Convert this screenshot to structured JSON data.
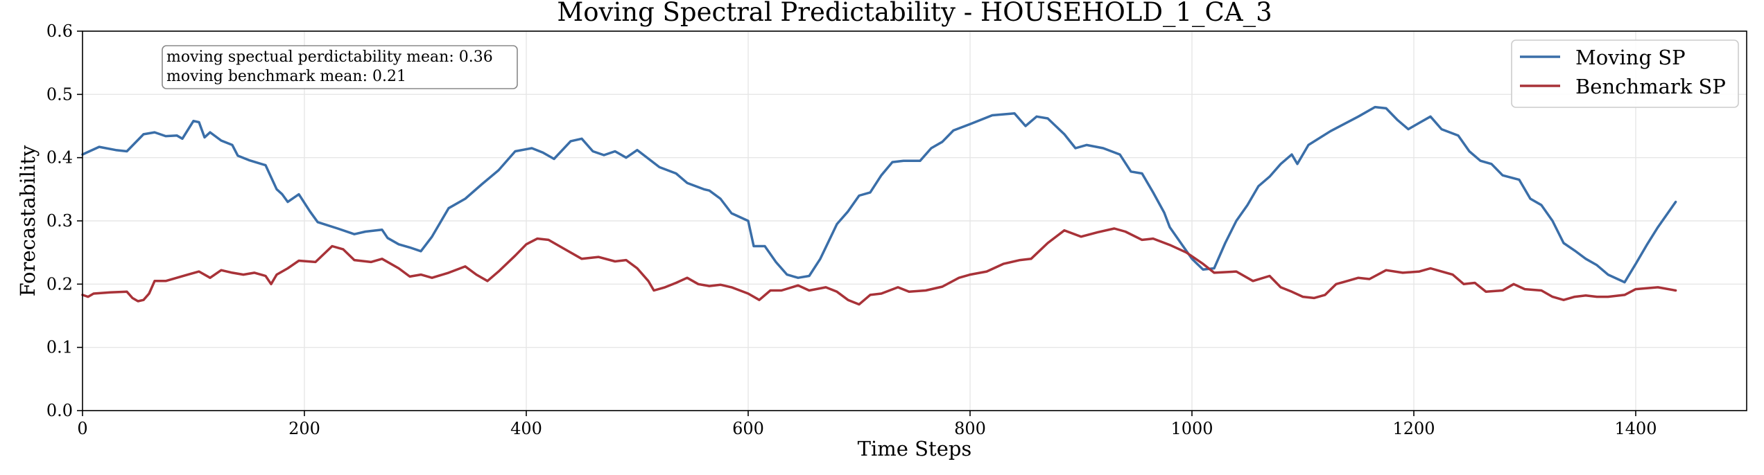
{
  "chart_data": {
    "type": "line",
    "title": "Moving Spectral Predictability - HOUSEHOLD_1_CA_3",
    "xlabel": "Time Steps",
    "ylabel": "Forecastability",
    "xlim": [
      0,
      1500
    ],
    "ylim": [
      0,
      0.6
    ],
    "xticks": [
      0,
      200,
      400,
      600,
      800,
      1000,
      1200,
      1400
    ],
    "yticks": [
      0.0,
      0.1,
      0.2,
      0.3,
      0.4,
      0.5,
      0.6
    ],
    "xtick_labels": [
      "0",
      "200",
      "400",
      "600",
      "800",
      "1000",
      "1200",
      "1400"
    ],
    "ytick_labels": [
      "0.0",
      "0.1",
      "0.2",
      "0.3",
      "0.4",
      "0.5",
      "0.6"
    ],
    "grid": true,
    "legend_position": "top-right",
    "annotation": {
      "lines": [
        "moving spectual perdictability mean: 0.36",
        "moving benchmark mean: 0.21"
      ]
    },
    "series": [
      {
        "name": "Moving SP",
        "color": "#3a6ea8",
        "points": [
          [
            0,
            0.405
          ],
          [
            15,
            0.417
          ],
          [
            30,
            0.412
          ],
          [
            40,
            0.41
          ],
          [
            55,
            0.437
          ],
          [
            65,
            0.44
          ],
          [
            75,
            0.434
          ],
          [
            85,
            0.435
          ],
          [
            90,
            0.43
          ],
          [
            100,
            0.458
          ],
          [
            105,
            0.456
          ],
          [
            110,
            0.432
          ],
          [
            115,
            0.44
          ],
          [
            125,
            0.427
          ],
          [
            135,
            0.42
          ],
          [
            140,
            0.403
          ],
          [
            150,
            0.396
          ],
          [
            165,
            0.388
          ],
          [
            175,
            0.35
          ],
          [
            180,
            0.342
          ],
          [
            185,
            0.33
          ],
          [
            195,
            0.342
          ],
          [
            205,
            0.315
          ],
          [
            212,
            0.298
          ],
          [
            230,
            0.288
          ],
          [
            245,
            0.279
          ],
          [
            255,
            0.283
          ],
          [
            270,
            0.286
          ],
          [
            275,
            0.273
          ],
          [
            285,
            0.263
          ],
          [
            295,
            0.258
          ],
          [
            305,
            0.252
          ],
          [
            315,
            0.275
          ],
          [
            330,
            0.32
          ],
          [
            345,
            0.335
          ],
          [
            360,
            0.358
          ],
          [
            375,
            0.38
          ],
          [
            390,
            0.41
          ],
          [
            405,
            0.415
          ],
          [
            415,
            0.408
          ],
          [
            425,
            0.398
          ],
          [
            440,
            0.426
          ],
          [
            450,
            0.43
          ],
          [
            460,
            0.41
          ],
          [
            470,
            0.404
          ],
          [
            480,
            0.41
          ],
          [
            490,
            0.4
          ],
          [
            500,
            0.412
          ],
          [
            520,
            0.385
          ],
          [
            535,
            0.375
          ],
          [
            545,
            0.36
          ],
          [
            560,
            0.35
          ],
          [
            565,
            0.348
          ],
          [
            575,
            0.335
          ],
          [
            585,
            0.312
          ],
          [
            600,
            0.3
          ],
          [
            605,
            0.26
          ],
          [
            615,
            0.26
          ],
          [
            625,
            0.235
          ],
          [
            635,
            0.215
          ],
          [
            645,
            0.21
          ],
          [
            655,
            0.213
          ],
          [
            665,
            0.24
          ],
          [
            680,
            0.295
          ],
          [
            690,
            0.315
          ],
          [
            700,
            0.34
          ],
          [
            710,
            0.345
          ],
          [
            720,
            0.372
          ],
          [
            730,
            0.393
          ],
          [
            740,
            0.395
          ],
          [
            755,
            0.395
          ],
          [
            765,
            0.415
          ],
          [
            775,
            0.425
          ],
          [
            785,
            0.443
          ],
          [
            800,
            0.453
          ],
          [
            820,
            0.467
          ],
          [
            840,
            0.47
          ],
          [
            845,
            0.46
          ],
          [
            850,
            0.45
          ],
          [
            860,
            0.465
          ],
          [
            870,
            0.462
          ],
          [
            885,
            0.437
          ],
          [
            895,
            0.415
          ],
          [
            905,
            0.42
          ],
          [
            920,
            0.415
          ],
          [
            935,
            0.405
          ],
          [
            945,
            0.378
          ],
          [
            955,
            0.375
          ],
          [
            965,
            0.345
          ],
          [
            975,
            0.313
          ],
          [
            980,
            0.29
          ],
          [
            990,
            0.265
          ],
          [
            1000,
            0.24
          ],
          [
            1010,
            0.223
          ],
          [
            1020,
            0.225
          ],
          [
            1030,
            0.265
          ],
          [
            1040,
            0.3
          ],
          [
            1050,
            0.325
          ],
          [
            1060,
            0.355
          ],
          [
            1070,
            0.37
          ],
          [
            1080,
            0.39
          ],
          [
            1090,
            0.405
          ],
          [
            1095,
            0.39
          ],
          [
            1105,
            0.42
          ],
          [
            1125,
            0.442
          ],
          [
            1150,
            0.465
          ],
          [
            1165,
            0.48
          ],
          [
            1175,
            0.478
          ],
          [
            1185,
            0.46
          ],
          [
            1195,
            0.445
          ],
          [
            1205,
            0.455
          ],
          [
            1215,
            0.465
          ],
          [
            1225,
            0.445
          ],
          [
            1240,
            0.435
          ],
          [
            1250,
            0.41
          ],
          [
            1260,
            0.395
          ],
          [
            1270,
            0.39
          ],
          [
            1280,
            0.372
          ],
          [
            1295,
            0.365
          ],
          [
            1305,
            0.335
          ],
          [
            1315,
            0.325
          ],
          [
            1325,
            0.3
          ],
          [
            1335,
            0.265
          ],
          [
            1345,
            0.253
          ],
          [
            1355,
            0.24
          ],
          [
            1365,
            0.23
          ],
          [
            1375,
            0.215
          ],
          [
            1390,
            0.203
          ],
          [
            1400,
            0.232
          ],
          [
            1410,
            0.262
          ],
          [
            1420,
            0.29
          ],
          [
            1436,
            0.33
          ]
        ]
      },
      {
        "name": "Benchmark SP",
        "color": "#a83238",
        "points": [
          [
            0,
            0.183
          ],
          [
            5,
            0.18
          ],
          [
            10,
            0.185
          ],
          [
            25,
            0.187
          ],
          [
            40,
            0.188
          ],
          [
            45,
            0.178
          ],
          [
            50,
            0.173
          ],
          [
            55,
            0.175
          ],
          [
            60,
            0.185
          ],
          [
            65,
            0.205
          ],
          [
            75,
            0.205
          ],
          [
            85,
            0.21
          ],
          [
            95,
            0.215
          ],
          [
            105,
            0.22
          ],
          [
            115,
            0.21
          ],
          [
            125,
            0.222
          ],
          [
            135,
            0.218
          ],
          [
            145,
            0.215
          ],
          [
            155,
            0.218
          ],
          [
            165,
            0.213
          ],
          [
            170,
            0.2
          ],
          [
            175,
            0.215
          ],
          [
            185,
            0.225
          ],
          [
            195,
            0.237
          ],
          [
            210,
            0.235
          ],
          [
            225,
            0.26
          ],
          [
            235,
            0.255
          ],
          [
            245,
            0.238
          ],
          [
            260,
            0.235
          ],
          [
            270,
            0.24
          ],
          [
            285,
            0.225
          ],
          [
            295,
            0.212
          ],
          [
            305,
            0.215
          ],
          [
            315,
            0.21
          ],
          [
            330,
            0.218
          ],
          [
            345,
            0.228
          ],
          [
            355,
            0.215
          ],
          [
            365,
            0.205
          ],
          [
            375,
            0.22
          ],
          [
            390,
            0.245
          ],
          [
            400,
            0.263
          ],
          [
            410,
            0.272
          ],
          [
            420,
            0.27
          ],
          [
            435,
            0.255
          ],
          [
            450,
            0.24
          ],
          [
            465,
            0.243
          ],
          [
            480,
            0.236
          ],
          [
            490,
            0.238
          ],
          [
            500,
            0.225
          ],
          [
            510,
            0.205
          ],
          [
            515,
            0.19
          ],
          [
            525,
            0.195
          ],
          [
            535,
            0.202
          ],
          [
            545,
            0.21
          ],
          [
            555,
            0.2
          ],
          [
            565,
            0.197
          ],
          [
            575,
            0.199
          ],
          [
            585,
            0.195
          ],
          [
            600,
            0.185
          ],
          [
            610,
            0.175
          ],
          [
            620,
            0.19
          ],
          [
            630,
            0.19
          ],
          [
            645,
            0.198
          ],
          [
            655,
            0.19
          ],
          [
            670,
            0.195
          ],
          [
            680,
            0.188
          ],
          [
            690,
            0.175
          ],
          [
            700,
            0.168
          ],
          [
            710,
            0.183
          ],
          [
            720,
            0.185
          ],
          [
            735,
            0.195
          ],
          [
            745,
            0.188
          ],
          [
            760,
            0.19
          ],
          [
            775,
            0.196
          ],
          [
            790,
            0.21
          ],
          [
            800,
            0.215
          ],
          [
            815,
            0.22
          ],
          [
            830,
            0.232
          ],
          [
            845,
            0.238
          ],
          [
            855,
            0.24
          ],
          [
            870,
            0.265
          ],
          [
            885,
            0.285
          ],
          [
            900,
            0.275
          ],
          [
            915,
            0.282
          ],
          [
            930,
            0.288
          ],
          [
            940,
            0.283
          ],
          [
            955,
            0.27
          ],
          [
            965,
            0.272
          ],
          [
            980,
            0.262
          ],
          [
            995,
            0.25
          ],
          [
            1010,
            0.232
          ],
          [
            1020,
            0.218
          ],
          [
            1040,
            0.22
          ],
          [
            1055,
            0.205
          ],
          [
            1070,
            0.213
          ],
          [
            1080,
            0.195
          ],
          [
            1090,
            0.188
          ],
          [
            1100,
            0.18
          ],
          [
            1110,
            0.178
          ],
          [
            1120,
            0.183
          ],
          [
            1130,
            0.2
          ],
          [
            1140,
            0.205
          ],
          [
            1150,
            0.21
          ],
          [
            1160,
            0.208
          ],
          [
            1175,
            0.222
          ],
          [
            1190,
            0.218
          ],
          [
            1205,
            0.22
          ],
          [
            1215,
            0.225
          ],
          [
            1225,
            0.22
          ],
          [
            1235,
            0.215
          ],
          [
            1245,
            0.2
          ],
          [
            1255,
            0.202
          ],
          [
            1265,
            0.188
          ],
          [
            1280,
            0.19
          ],
          [
            1290,
            0.2
          ],
          [
            1300,
            0.192
          ],
          [
            1315,
            0.19
          ],
          [
            1325,
            0.18
          ],
          [
            1335,
            0.175
          ],
          [
            1345,
            0.18
          ],
          [
            1355,
            0.182
          ],
          [
            1365,
            0.18
          ],
          [
            1375,
            0.18
          ],
          [
            1390,
            0.183
          ],
          [
            1400,
            0.192
          ],
          [
            1420,
            0.195
          ],
          [
            1436,
            0.19
          ]
        ]
      }
    ]
  }
}
